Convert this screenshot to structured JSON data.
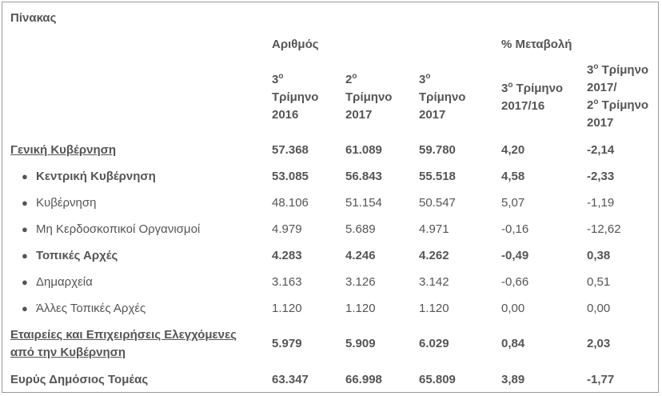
{
  "table": {
    "title": "Πίνακας",
    "group_count": "Αριθμός",
    "group_change": "% Μεταβολή",
    "columns": [
      {
        "l1": "3",
        "sup": "ο",
        "l2": "Τρίμηνο",
        "l3": "2016",
        "l4": ""
      },
      {
        "l1": "2",
        "sup": "ο",
        "l2": "Τρίμηνο",
        "l3": "2017",
        "l4": ""
      },
      {
        "l1": "3",
        "sup": "ο",
        "l2": "Τρίμηνο",
        "l3": "2017",
        "l4": ""
      },
      {
        "l1": "3",
        "sup": "ο",
        "l2": "Τρίμηνο",
        "l3": "2017/16",
        "l4": ""
      },
      {
        "l1": "3",
        "sup": "ο",
        "l2": "Τρίμηνο",
        "l3": "2017/",
        "l4b": "2",
        "sup2": "ο",
        "l5": "Τρίμηνο",
        "l6": "2017"
      }
    ],
    "rows": [
      {
        "label": "Γενική Κυβέρνηση",
        "v": [
          "57.368",
          "61.089",
          "59.780",
          "4,20",
          "-2,14"
        ]
      },
      {
        "label": "Κεντρική Κυβέρνηση",
        "v": [
          "53.085",
          "56.843",
          "55.518",
          "4,58",
          "-2,33"
        ]
      },
      {
        "label": "Κυβέρνηση",
        "v": [
          "48.106",
          "51.154",
          "50.547",
          "5,07",
          "-1,19"
        ]
      },
      {
        "label": "Μη Κερδοσκοπικοί Οργανισμοί",
        "v": [
          "4.979",
          "5.689",
          "4.971",
          "-0,16",
          "-12,62"
        ]
      },
      {
        "label": "Τοπικές Αρχές",
        "v": [
          "4.283",
          "4.246",
          "4.262",
          "-0,49",
          "0,38"
        ]
      },
      {
        "label": "Δημαρχεία",
        "v": [
          "3.163",
          "3.126",
          "3.142",
          "-0,66",
          "0,51"
        ]
      },
      {
        "label": "Άλλες Τοπικές Αρχές",
        "v": [
          "1.120",
          "1.120",
          "1.120",
          "0,00",
          "0,00"
        ]
      },
      {
        "label": "Εταιρείες και Επιχειρήσεις Ελεγχόμενες",
        "label2": "από την Κυβέρνηση",
        "v": [
          "5.979",
          "5.909",
          "6.029",
          "0,84",
          "2,03"
        ]
      },
      {
        "label": "Ευρύς Δημόσιος Τομέας",
        "v": [
          "63.347",
          "66.998",
          "65.809",
          "3,89",
          "-1,77"
        ]
      }
    ]
  }
}
